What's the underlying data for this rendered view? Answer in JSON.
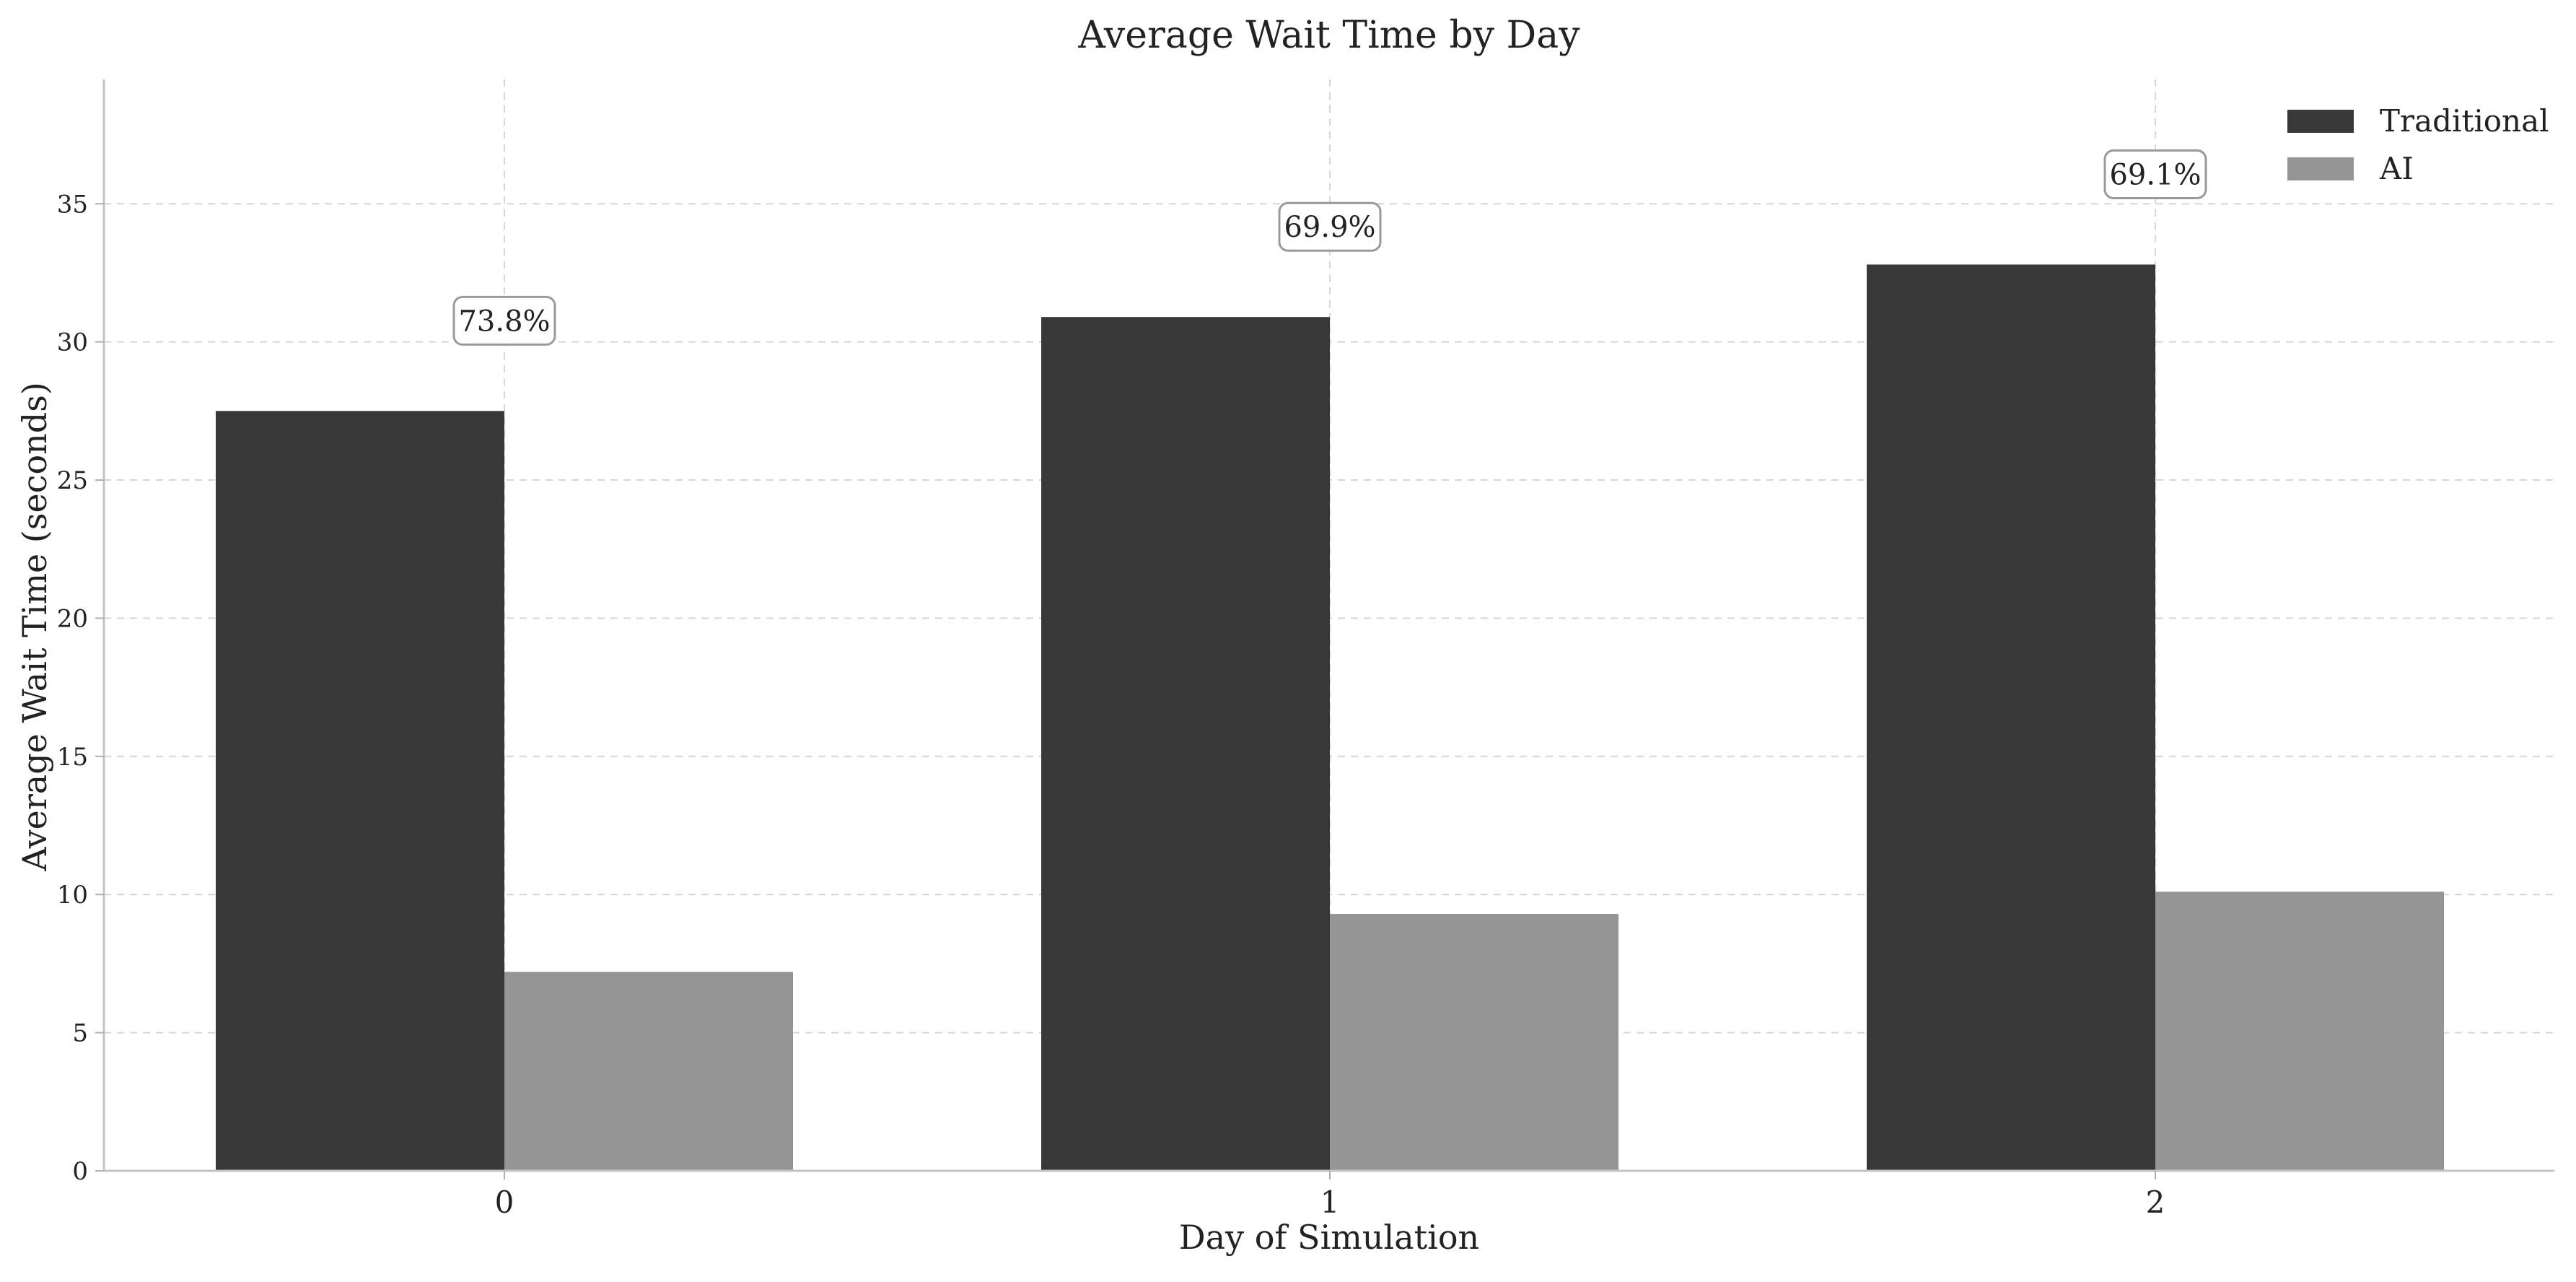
{
  "chart_data": {
    "type": "bar",
    "title": "Average Wait Time by Day",
    "xlabel": "Day of Simulation",
    "ylabel": "Average Wait Time (seconds)",
    "categories": [
      "0",
      "1",
      "2"
    ],
    "series": [
      {
        "name": "Traditional",
        "color": "#383838",
        "values": [
          27.5,
          30.9,
          32.8
        ]
      },
      {
        "name": "AI",
        "color": "#959595",
        "values": [
          7.2,
          9.3,
          10.1
        ]
      }
    ],
    "annotations": [
      "73.8%",
      "69.9%",
      "69.1%"
    ],
    "ylim": [
      0,
      39.5
    ],
    "yticks": [
      0,
      5,
      10,
      15,
      20,
      25,
      30,
      35
    ],
    "grid": true,
    "legend": "top-right"
  }
}
